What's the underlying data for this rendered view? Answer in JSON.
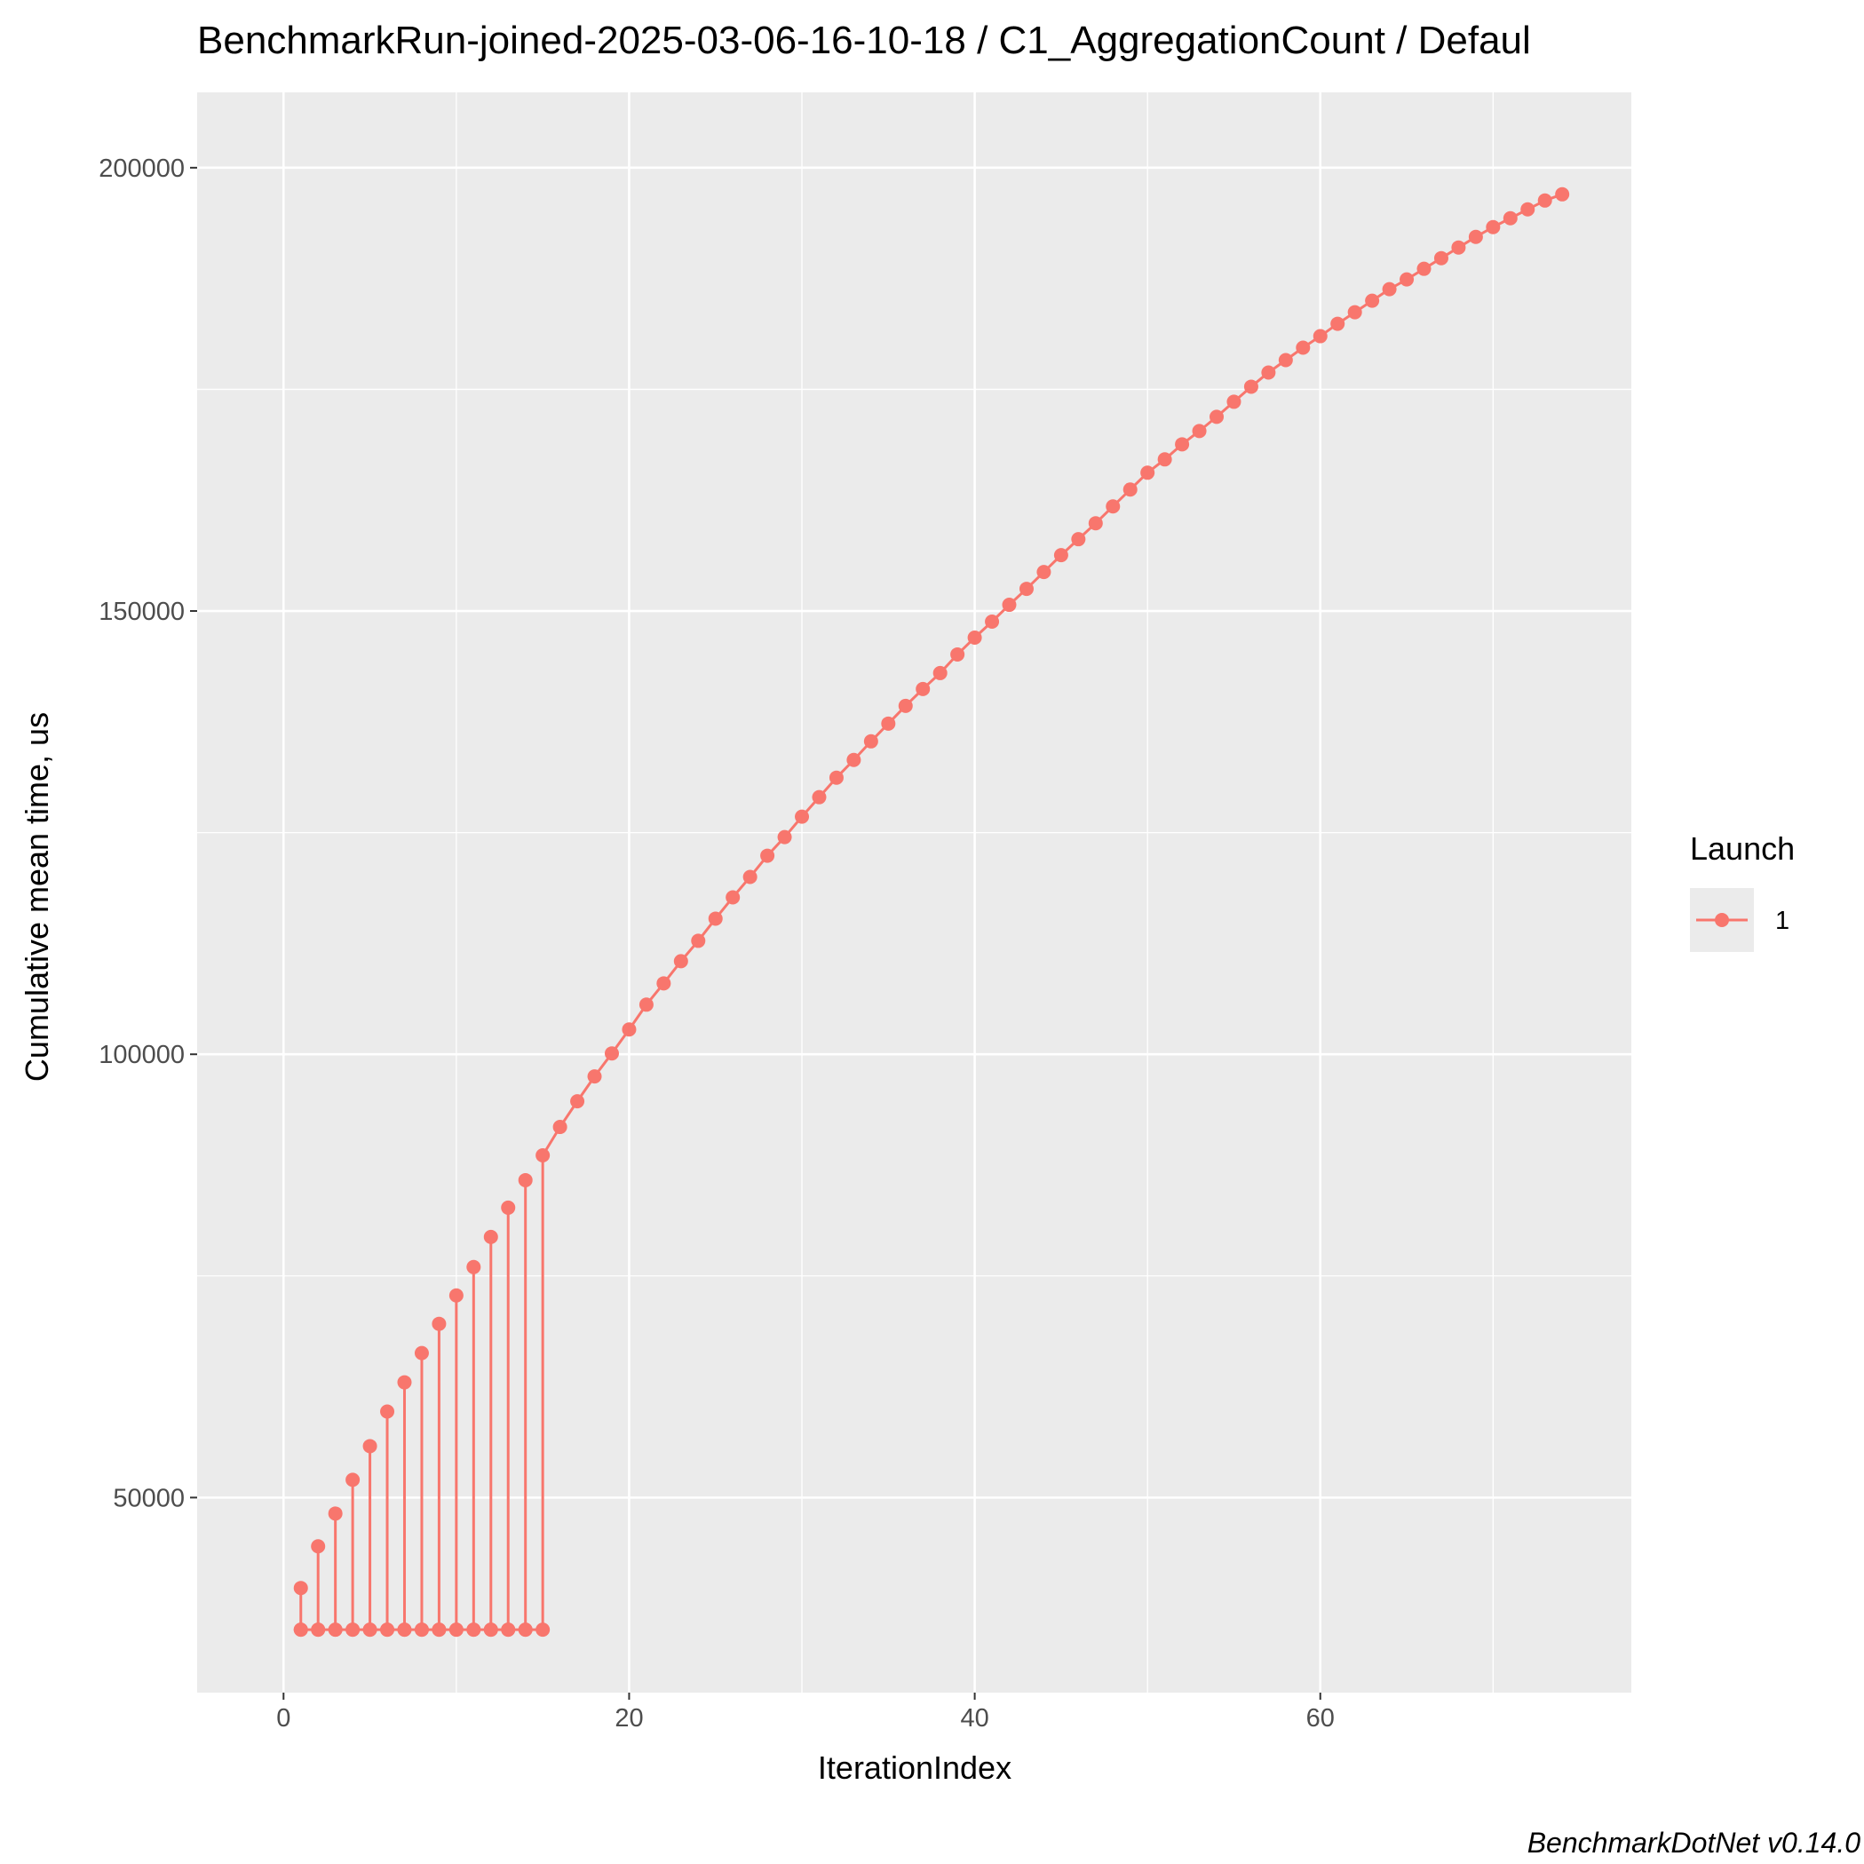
{
  "chart_data": {
    "type": "line",
    "title": "BenchmarkRun-joined-2025-03-06-16-10-18 / C1_AggregationCount / Defaul",
    "xlabel": "IterationIndex",
    "ylabel": "Cumulative mean time, us",
    "caption": "BenchmarkDotNet v0.14.0",
    "xlim": [
      -5,
      78
    ],
    "ylim": [
      28000,
      208500
    ],
    "x_ticks": [
      0,
      20,
      40,
      60
    ],
    "y_ticks": [
      50000,
      100000,
      150000,
      200000
    ],
    "x_tick_labels": [
      "0",
      "20",
      "40",
      "60"
    ],
    "y_tick_labels": [
      "50000",
      "100000",
      "150000",
      "200000"
    ],
    "grid": true,
    "legend": {
      "title": "Launch",
      "position": "right",
      "entries": [
        "1"
      ]
    },
    "colors": {
      "series": "#f8766d",
      "panel": "#ebebeb",
      "grid": "#ffffff"
    },
    "series": [
      {
        "name": "1",
        "points": [
          [
            1,
            35100
          ],
          [
            1,
            39800
          ],
          [
            1,
            35100
          ],
          [
            2,
            35100
          ],
          [
            2,
            44500
          ],
          [
            2,
            35100
          ],
          [
            3,
            35100
          ],
          [
            3,
            48200
          ],
          [
            3,
            35100
          ],
          [
            4,
            35100
          ],
          [
            4,
            52000
          ],
          [
            4,
            35100
          ],
          [
            5,
            35100
          ],
          [
            5,
            55800
          ],
          [
            5,
            35100
          ],
          [
            6,
            35100
          ],
          [
            6,
            59700
          ],
          [
            6,
            35100
          ],
          [
            7,
            35100
          ],
          [
            7,
            63000
          ],
          [
            7,
            35100
          ],
          [
            8,
            35100
          ],
          [
            8,
            66300
          ],
          [
            8,
            35100
          ],
          [
            9,
            35100
          ],
          [
            9,
            69600
          ],
          [
            9,
            35100
          ],
          [
            10,
            35100
          ],
          [
            10,
            72800
          ],
          [
            10,
            35100
          ],
          [
            11,
            35100
          ],
          [
            11,
            76000
          ],
          [
            11,
            35100
          ],
          [
            12,
            35100
          ],
          [
            12,
            79400
          ],
          [
            12,
            35100
          ],
          [
            13,
            35100
          ],
          [
            13,
            82700
          ],
          [
            13,
            35100
          ],
          [
            14,
            35100
          ],
          [
            14,
            85800
          ],
          [
            14,
            35100
          ],
          [
            15,
            35100
          ],
          [
            15,
            88600
          ],
          [
            16,
            91800
          ],
          [
            17,
            94700
          ],
          [
            18,
            97500
          ],
          [
            19,
            100100
          ],
          [
            20,
            102800
          ],
          [
            21,
            105600
          ],
          [
            22,
            108000
          ],
          [
            23,
            110500
          ],
          [
            24,
            112800
          ],
          [
            25,
            115300
          ],
          [
            26,
            117700
          ],
          [
            27,
            120000
          ],
          [
            28,
            122400
          ],
          [
            29,
            124500
          ],
          [
            30,
            126800
          ],
          [
            31,
            129000
          ],
          [
            32,
            131200
          ],
          [
            33,
            133200
          ],
          [
            34,
            135300
          ],
          [
            35,
            137300
          ],
          [
            36,
            139300
          ],
          [
            37,
            141200
          ],
          [
            38,
            143000
          ],
          [
            39,
            145100
          ],
          [
            40,
            147000
          ],
          [
            41,
            148800
          ],
          [
            42,
            150700
          ],
          [
            43,
            152500
          ],
          [
            44,
            154400
          ],
          [
            45,
            156300
          ],
          [
            46,
            158100
          ],
          [
            47,
            159900
          ],
          [
            48,
            161800
          ],
          [
            49,
            163700
          ],
          [
            50,
            165600
          ],
          [
            51,
            167100
          ],
          [
            52,
            168800
          ],
          [
            53,
            170300
          ],
          [
            54,
            171900
          ],
          [
            55,
            173600
          ],
          [
            56,
            175300
          ],
          [
            57,
            176900
          ],
          [
            58,
            178300
          ],
          [
            59,
            179700
          ],
          [
            60,
            181000
          ],
          [
            61,
            182400
          ],
          [
            62,
            183700
          ],
          [
            63,
            185000
          ],
          [
            64,
            186300
          ],
          [
            65,
            187400
          ],
          [
            66,
            188600
          ],
          [
            67,
            189800
          ],
          [
            68,
            191000
          ],
          [
            69,
            192200
          ],
          [
            70,
            193300
          ],
          [
            71,
            194300
          ],
          [
            72,
            195300
          ],
          [
            73,
            196300
          ],
          [
            74,
            197000
          ]
        ]
      }
    ]
  }
}
